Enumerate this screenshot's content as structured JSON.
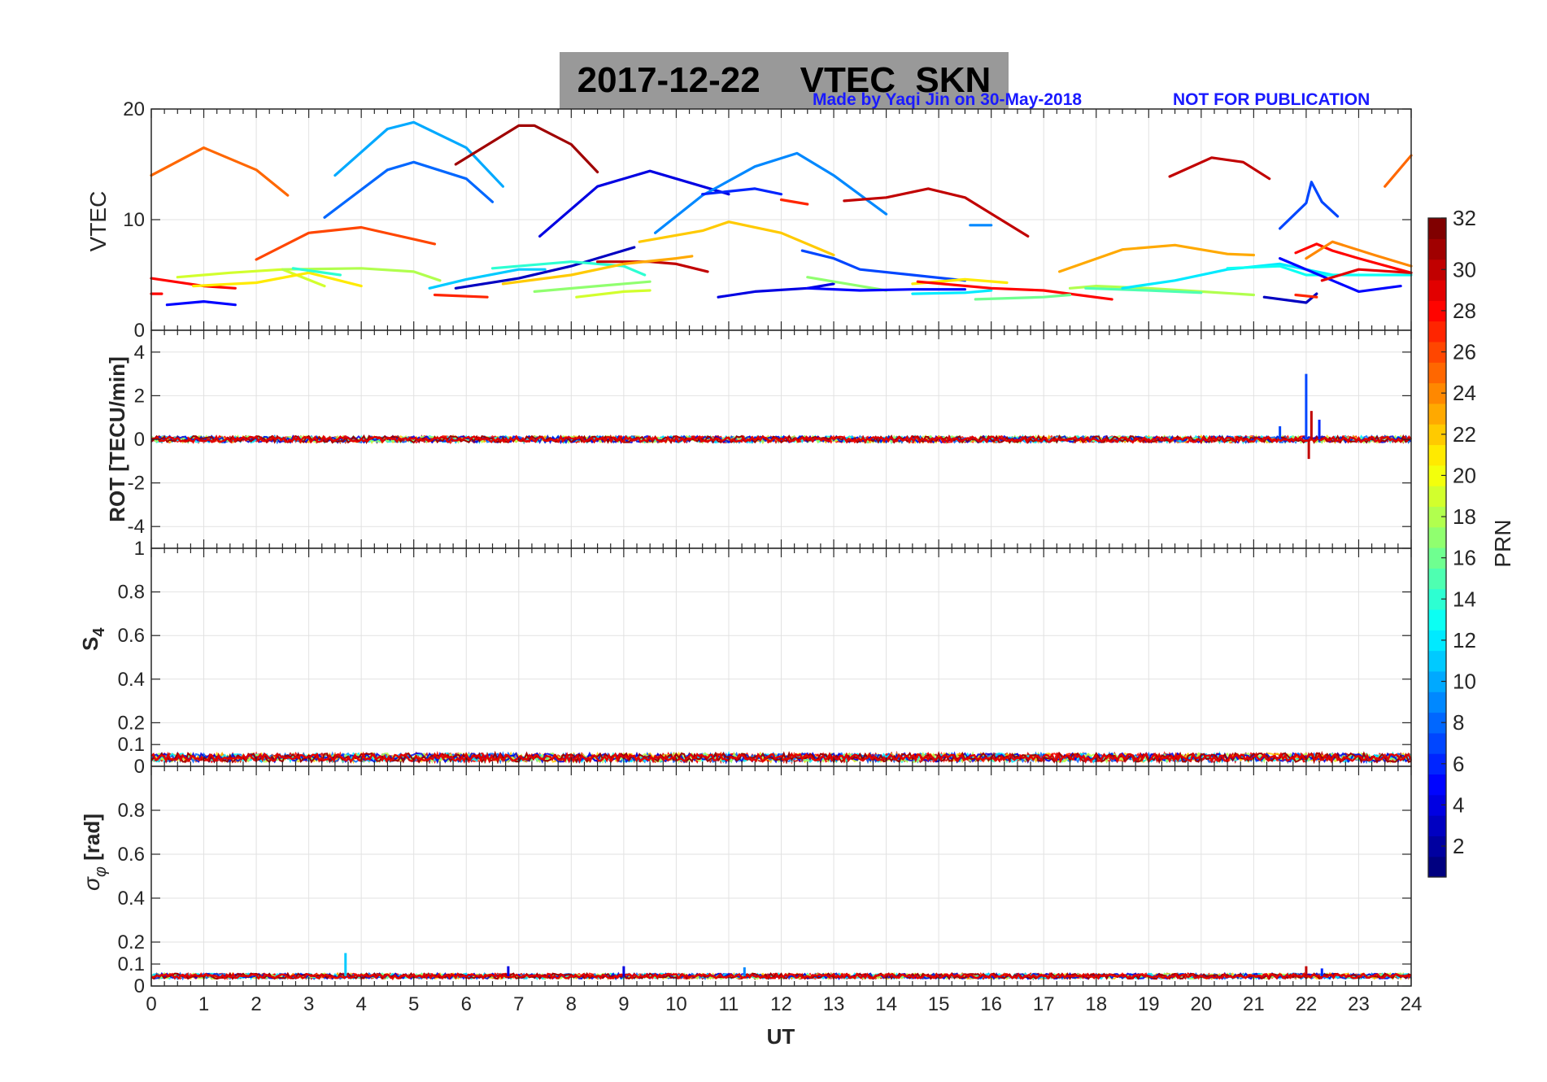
{
  "header": {
    "title": "2017-12-22    VTEC  SKN",
    "credit_left": "Made by Yaqi Jin on 30-May-2018",
    "credit_right": "NOT FOR PUBLICATION"
  },
  "colorbar": {
    "label": "PRN",
    "min": 1,
    "max": 32,
    "ticks": [
      2,
      4,
      6,
      8,
      10,
      12,
      14,
      16,
      18,
      20,
      22,
      24,
      26,
      28,
      30,
      32
    ]
  },
  "chart_data": [
    {
      "type": "line",
      "panel": "vtec",
      "ylabel": "VTEC",
      "xlim": [
        0,
        24
      ],
      "ylim": [
        0,
        20
      ],
      "yticks": [
        0,
        10,
        20
      ],
      "grid": true,
      "series": [
        {
          "prn": 25,
          "x": [
            0,
            1,
            2,
            2.6
          ],
          "y": [
            14.0,
            16.5,
            14.5,
            12.2
          ]
        },
        {
          "prn": 26,
          "x": [
            2,
            3,
            4,
            5.4
          ],
          "y": [
            6.4,
            8.8,
            9.3,
            7.8
          ]
        },
        {
          "prn": 10,
          "x": [
            3.5,
            4.5,
            5,
            6,
            6.7
          ],
          "y": [
            14.0,
            18.2,
            18.8,
            16.5,
            13.0
          ]
        },
        {
          "prn": 8,
          "x": [
            3.3,
            4.5,
            5,
            6,
            6.5
          ],
          "y": [
            10.2,
            14.5,
            15.2,
            13.7,
            11.6
          ]
        },
        {
          "prn": 31,
          "x": [
            5.8,
            7,
            7.3,
            8,
            8.5
          ],
          "y": [
            15.0,
            18.5,
            18.5,
            16.8,
            14.3
          ]
        },
        {
          "prn": 4,
          "x": [
            7.4,
            8.5,
            9.5,
            10.5,
            11
          ],
          "y": [
            8.5,
            13.0,
            14.4,
            13.0,
            12.3
          ]
        },
        {
          "prn": 9,
          "x": [
            9.6,
            10.5,
            11.5,
            12.3,
            13,
            14
          ],
          "y": [
            8.8,
            12.2,
            14.8,
            16.0,
            14.0,
            10.5
          ]
        },
        {
          "prn": 6,
          "x": [
            10.5,
            11.5,
            12
          ],
          "y": [
            12.3,
            12.8,
            12.3
          ]
        },
        {
          "prn": 27,
          "x": [
            12,
            12.5
          ],
          "y": [
            11.8,
            11.4
          ]
        },
        {
          "prn": 30,
          "x": [
            13.2,
            14,
            14.8,
            15.5,
            16.7
          ],
          "y": [
            11.7,
            12.0,
            12.8,
            12.0,
            8.5
          ]
        },
        {
          "prn": 9,
          "x": [
            15.6,
            16
          ],
          "y": [
            9.5,
            9.5
          ]
        },
        {
          "prn": 30,
          "x": [
            19.4,
            20.2,
            20.8,
            21.3
          ],
          "y": [
            13.9,
            15.6,
            15.2,
            13.7
          ]
        },
        {
          "prn": 7,
          "x": [
            21.5,
            22,
            22.1,
            22.3,
            22.6
          ],
          "y": [
            9.2,
            11.5,
            13.4,
            11.6,
            10.3
          ]
        },
        {
          "prn": 25,
          "x": [
            23.5,
            24
          ],
          "y": [
            13.0,
            15.8
          ]
        },
        {
          "prn": 22,
          "x": [
            9.3,
            10.5,
            11,
            12,
            13
          ],
          "y": [
            8.0,
            9.0,
            9.8,
            8.8,
            6.8
          ]
        },
        {
          "prn": 23,
          "x": [
            17.3,
            18.5,
            19.5,
            20.5,
            21
          ],
          "y": [
            5.3,
            7.3,
            7.7,
            6.9,
            6.8
          ]
        },
        {
          "prn": 28,
          "x": [
            21.8,
            22.2,
            22.5,
            23,
            24
          ],
          "y": [
            7.0,
            7.8,
            7.2,
            6.5,
            5.2
          ]
        },
        {
          "prn": 24,
          "x": [
            22,
            22.5,
            23.3,
            24
          ],
          "y": [
            6.5,
            8.0,
            6.8,
            5.8
          ]
        },
        {
          "prn": 28,
          "x": [
            0,
            1,
            1.6
          ],
          "y": [
            4.7,
            4.0,
            3.8
          ]
        },
        {
          "prn": 19,
          "x": [
            0.5,
            1.5,
            2.5,
            3.3
          ],
          "y": [
            4.8,
            5.2,
            5.5,
            4.0
          ]
        },
        {
          "prn": 21,
          "x": [
            0.8,
            2,
            3,
            4
          ],
          "y": [
            4.0,
            4.3,
            5.2,
            4.0
          ]
        },
        {
          "prn": 18,
          "x": [
            2.5,
            4,
            5,
            5.5
          ],
          "y": [
            5.5,
            5.6,
            5.3,
            4.5
          ]
        },
        {
          "prn": 14,
          "x": [
            2.7,
            3.6
          ],
          "y": [
            5.6,
            5.0
          ]
        },
        {
          "prn": 28,
          "x": [
            0,
            0.2
          ],
          "y": [
            3.3,
            3.3
          ]
        },
        {
          "prn": 5,
          "x": [
            0.3,
            1,
            1.6
          ],
          "y": [
            2.3,
            2.6,
            2.3
          ]
        },
        {
          "prn": 27,
          "x": [
            5.4,
            6.4
          ],
          "y": [
            3.2,
            3.0
          ]
        },
        {
          "prn": 11,
          "x": [
            5.3,
            6,
            7,
            7.5
          ],
          "y": [
            3.8,
            4.6,
            5.5,
            5.5
          ]
        },
        {
          "prn": 3,
          "x": [
            5.8,
            7,
            8,
            9.2
          ],
          "y": [
            3.8,
            4.7,
            5.8,
            7.5
          ]
        },
        {
          "prn": 14,
          "x": [
            6.5,
            8,
            9,
            9.4
          ],
          "y": [
            5.6,
            6.2,
            5.8,
            5.0
          ]
        },
        {
          "prn": 22,
          "x": [
            6.7,
            8,
            9
          ],
          "y": [
            4.2,
            5.0,
            6.0
          ]
        },
        {
          "prn": 17,
          "x": [
            7.3,
            8.5,
            9.5
          ],
          "y": [
            3.5,
            4.0,
            4.4
          ]
        },
        {
          "prn": 19,
          "x": [
            8.1,
            9,
            9.5
          ],
          "y": [
            3.0,
            3.5,
            3.6
          ]
        },
        {
          "prn": 30,
          "x": [
            8.5,
            9.5,
            10,
            10.6
          ],
          "y": [
            6.2,
            6.2,
            6.0,
            5.3
          ]
        },
        {
          "prn": 23,
          "x": [
            9,
            10,
            10.3
          ],
          "y": [
            6.0,
            6.5,
            6.7
          ]
        },
        {
          "prn": 4,
          "x": [
            10.8,
            11.5,
            12.5,
            13
          ],
          "y": [
            3.0,
            3.5,
            3.8,
            4.2
          ]
        },
        {
          "prn": 7,
          "x": [
            12.4,
            13,
            13.5,
            14.5,
            15.5
          ],
          "y": [
            7.2,
            6.5,
            5.5,
            5.0,
            4.5
          ]
        },
        {
          "prn": 17,
          "x": [
            12.5,
            13.5,
            14
          ],
          "y": [
            4.8,
            4.0,
            3.6
          ]
        },
        {
          "prn": 5,
          "x": [
            12.5,
            13.5,
            14.5,
            15.5
          ],
          "y": [
            3.8,
            3.6,
            3.7,
            3.7
          ]
        },
        {
          "prn": 12,
          "x": [
            14.5,
            15.5,
            16
          ],
          "y": [
            3.3,
            3.4,
            3.6
          ]
        },
        {
          "prn": 21,
          "x": [
            14.5,
            15.5,
            16.3
          ],
          "y": [
            4.2,
            4.6,
            4.3
          ]
        },
        {
          "prn": 28,
          "x": [
            14.6,
            16,
            17,
            18.3
          ],
          "y": [
            4.4,
            3.8,
            3.6,
            2.8
          ]
        },
        {
          "prn": 16,
          "x": [
            15.7,
            17,
            17.5
          ],
          "y": [
            2.8,
            3.0,
            3.2
          ]
        },
        {
          "prn": 18,
          "x": [
            17.5,
            18,
            19,
            20,
            21
          ],
          "y": [
            3.8,
            4.0,
            3.8,
            3.5,
            3.2
          ]
        },
        {
          "prn": 15,
          "x": [
            17.8,
            19,
            20
          ],
          "y": [
            3.8,
            3.6,
            3.4
          ]
        },
        {
          "prn": 12,
          "x": [
            18.5,
            19.5,
            20.5,
            21.5,
            22.5
          ],
          "y": [
            3.8,
            4.5,
            5.5,
            6.0,
            5.0
          ]
        },
        {
          "prn": 13,
          "x": [
            20.5,
            21.5,
            22,
            23,
            24
          ],
          "y": [
            5.6,
            5.8,
            5.0,
            5.0,
            5.0
          ]
        },
        {
          "prn": 5,
          "x": [
            21.5,
            22.5,
            23,
            23.8
          ],
          "y": [
            6.5,
            4.5,
            3.5,
            4.0
          ]
        },
        {
          "prn": 3,
          "x": [
            21.2,
            22,
            22.2
          ],
          "y": [
            3.0,
            2.5,
            3.3
          ]
        },
        {
          "prn": 27,
          "x": [
            21.8,
            22.2
          ],
          "y": [
            3.2,
            3.0
          ]
        },
        {
          "prn": 29,
          "x": [
            22.3,
            23,
            24
          ],
          "y": [
            4.5,
            5.5,
            5.2
          ]
        }
      ]
    },
    {
      "type": "line",
      "panel": "rot",
      "ylabel": "ROT [TECU/min]",
      "xlim": [
        0,
        24
      ],
      "ylim": [
        -5,
        5
      ],
      "yticks": [
        -4,
        -2,
        0,
        2,
        4
      ],
      "grid": true,
      "baseline": 0,
      "noise_amplitude": 0.15,
      "spikes": [
        {
          "x": 22.0,
          "y": 3.0,
          "prn": 7
        },
        {
          "x": 22.05,
          "y": -0.9,
          "prn": 30
        },
        {
          "x": 22.1,
          "y": 1.3,
          "prn": 30
        },
        {
          "x": 21.5,
          "y": 0.6,
          "prn": 7
        },
        {
          "x": 22.25,
          "y": 0.9,
          "prn": 6
        }
      ]
    },
    {
      "type": "line",
      "panel": "s4",
      "ylabel": "S4",
      "xlim": [
        0,
        24
      ],
      "ylim": [
        0,
        1
      ],
      "yticks": [
        0,
        0.1,
        0.2,
        0.4,
        0.6,
        0.8,
        1
      ],
      "grid": true,
      "baseline": 0.04,
      "noise_amplitude": 0.02,
      "spikes": []
    },
    {
      "type": "line",
      "panel": "sigma_phi",
      "ylabel": "σφ [rad]",
      "xlim": [
        0,
        24
      ],
      "ylim": [
        0,
        1
      ],
      "yticks": [
        0,
        0.1,
        0.2,
        0.4,
        0.6,
        0.8
      ],
      "xticks": [
        0,
        1,
        2,
        3,
        4,
        5,
        6,
        7,
        8,
        9,
        10,
        11,
        12,
        13,
        14,
        15,
        16,
        17,
        18,
        19,
        20,
        21,
        22,
        23,
        24
      ],
      "xlabel": "UT",
      "grid": true,
      "baseline": 0.045,
      "noise_amplitude": 0.012,
      "spikes": [
        {
          "x": 3.7,
          "y": 0.15,
          "prn": 11
        },
        {
          "x": 6.8,
          "y": 0.09,
          "prn": 4
        },
        {
          "x": 9.0,
          "y": 0.09,
          "prn": 4
        },
        {
          "x": 11.3,
          "y": 0.085,
          "prn": 9
        },
        {
          "x": 22.0,
          "y": 0.09,
          "prn": 30
        },
        {
          "x": 22.3,
          "y": 0.08,
          "prn": 6
        }
      ]
    }
  ],
  "labels": {
    "ylabel_vtec": "VTEC",
    "ylabel_rot": "ROT [TECU/min]",
    "ylabel_s4": "S",
    "ylabel_s4_sub": "4",
    "ylabel_sigma_sym": "σ",
    "ylabel_sigma_sub": "φ",
    "ylabel_sigma_unit": " [rad]",
    "xlabel": "UT",
    "colorbar_label": "PRN"
  }
}
